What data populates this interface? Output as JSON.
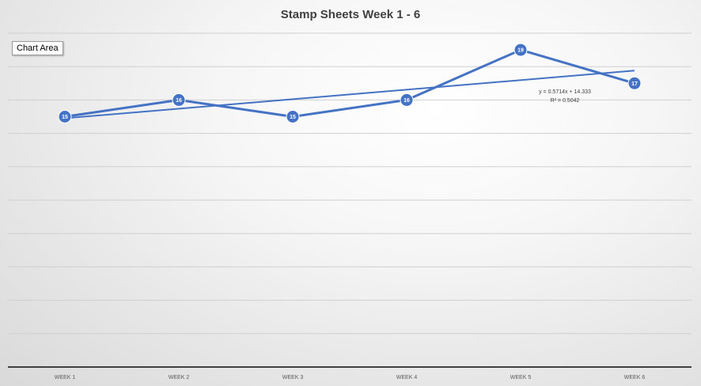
{
  "chart_data": {
    "type": "line",
    "title": "Stamp Sheets Week 1 - 6",
    "categories": [
      "WEEK 1",
      "WEEK 2",
      "WEEK 3",
      "WEEK 4",
      "WEEK 5",
      "WEEK 6"
    ],
    "series": [
      {
        "values": [
          15,
          16,
          15,
          16,
          19,
          17
        ],
        "color": "#4472c4"
      }
    ],
    "trendline": {
      "type": "linear",
      "slope": 0.5714,
      "intercept": 14.333,
      "equation": "y = 0.5714x + 14.333",
      "r_squared": "R² = 0.5042",
      "color": "#4472c4"
    },
    "ylim": [
      0,
      20
    ],
    "grid": true,
    "legend": "none",
    "data_labels": true
  },
  "tooltip": {
    "label": "Chart Area"
  }
}
